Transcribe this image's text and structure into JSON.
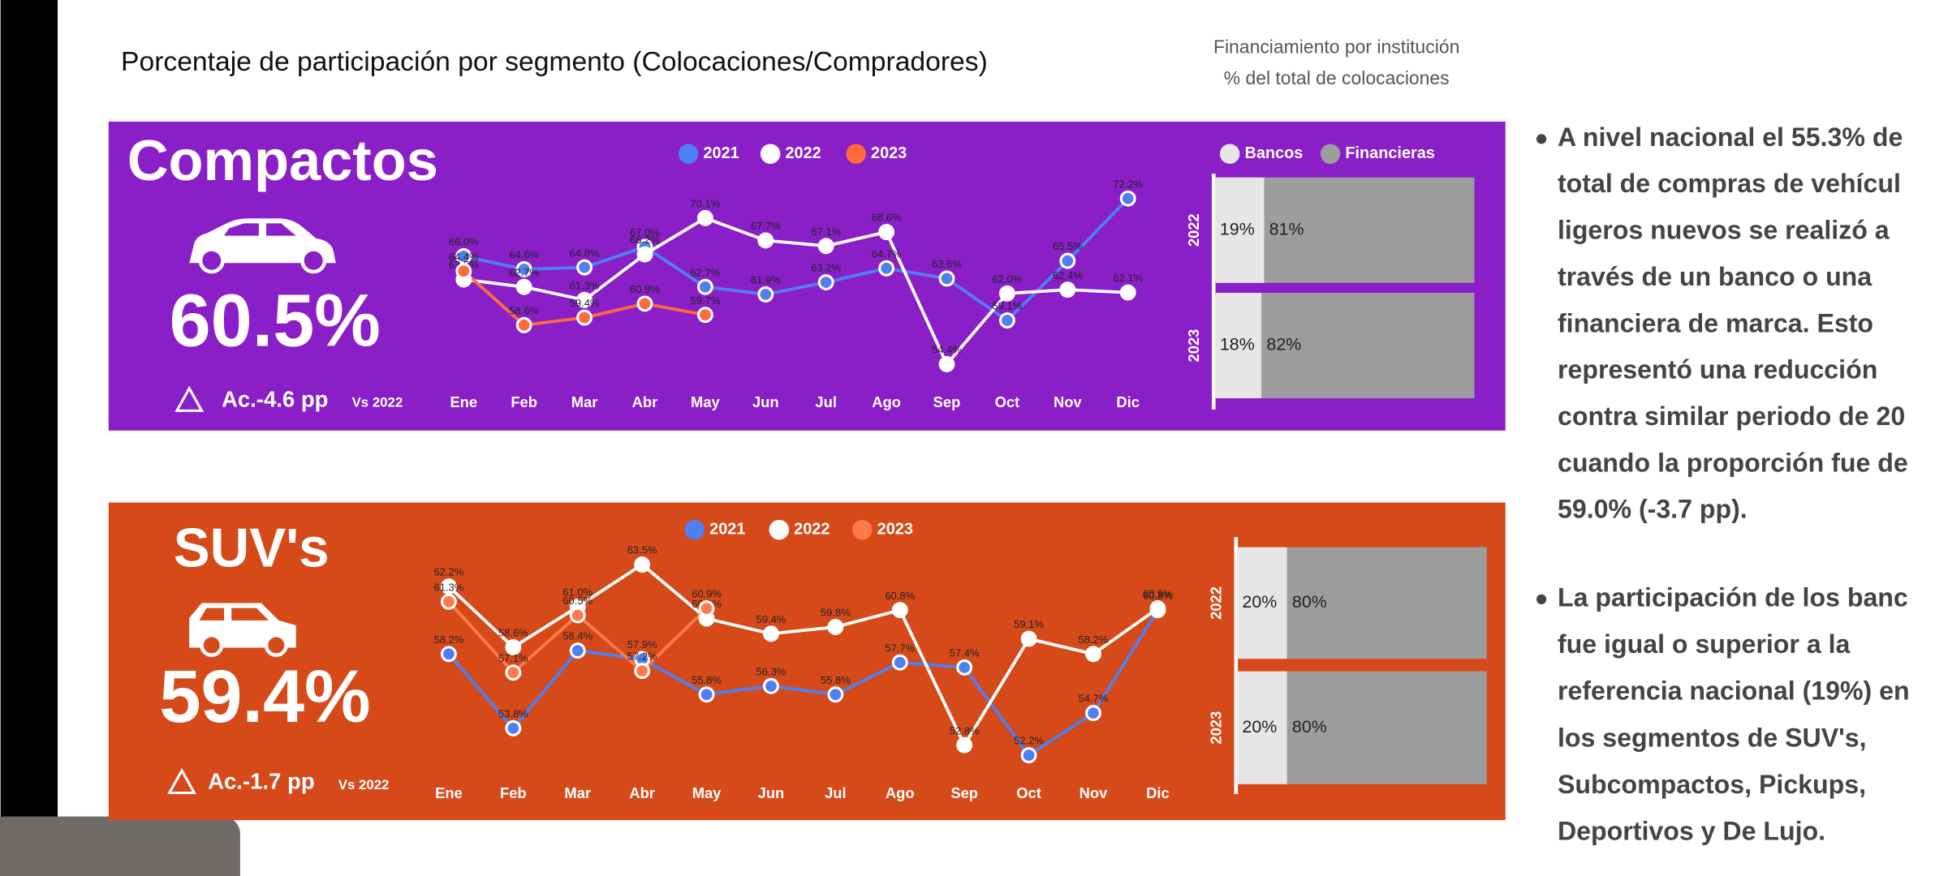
{
  "title": "Porcentaje de participación por segmento (Colocaciones/Compradores)",
  "subtitle_lines": [
    "Financiamiento por institución",
    "% del total de colocaciones"
  ],
  "panels": [
    {
      "name": "Compactos",
      "share": "60.5%",
      "delta": "Ac.-4.6 pp",
      "vs": "Vs 2022"
    },
    {
      "name": "SUV's",
      "share": "59.4%",
      "delta": "Ac.-1.7 pp",
      "vs": "Vs 2022"
    }
  ],
  "bullets": [
    [
      "A nivel nacional el 55.3% de",
      "total de compras de vehícul",
      "ligeros nuevos se realizó a",
      "través de un banco o una",
      "financiera de marca. Esto",
      "representó una reducción",
      "contra similar periodo de 20",
      "cuando la proporción fue de",
      "59.0% (-3.7 pp)."
    ],
    [
      "La participación de los banc",
      "fue igual o superior a la",
      "referencia nacional (19%) en",
      "los segmentos de SUV's,",
      "Subcompactos, Pickups,",
      "Deportivos y De Lujo."
    ]
  ],
  "chart_data": [
    {
      "type": "line",
      "legend": "top",
      "categories": [
        "Ene",
        "Feb",
        "Mar",
        "Abr",
        "May",
        "Jun",
        "Jul",
        "Ago",
        "Sep",
        "Oct",
        "Nov",
        "Dic"
      ],
      "ylim": [
        52,
        74
      ],
      "series": [
        {
          "name": "2021",
          "color": "#4f7ff0",
          "values": [
            66,
            64.6,
            64.8,
            67,
            62.7,
            61.9,
            63.2,
            64.7,
            63.6,
            59.1,
            65.5,
            72.2
          ],
          "value_labels": [
            "66.0%",
            "64.6%",
            "64.8%",
            "67.0%",
            "62.7%",
            "61.9%",
            "63.2%",
            "64.7%",
            "63.6%",
            "59.1%",
            "65.5%",
            "72.2%"
          ]
        },
        {
          "name": "2022",
          "color": "#ffffff",
          "values": [
            63.5,
            62.7,
            61.3,
            66.2,
            70.1,
            67.7,
            67.1,
            68.6,
            54.4,
            62,
            62.4,
            62.1
          ],
          "value_labels": [
            "63.5%",
            "62.7%",
            "61.3%",
            "66.2%",
            "70.1%",
            "67.7%",
            "67.1%",
            "68.6%",
            "54.4%",
            "62.0%",
            "62.4%",
            "62.1%"
          ]
        },
        {
          "name": "2023",
          "color": "#ff6a3d",
          "values": [
            64.4,
            58.6,
            59.4,
            60.9,
            59.7,
            null,
            null,
            null,
            null,
            null,
            null,
            null
          ],
          "value_labels": [
            "64.4%",
            "58.6%",
            "59.4%",
            "60.9%",
            "59.7%",
            null,
            null,
            null,
            null,
            null,
            null,
            null
          ]
        }
      ]
    },
    {
      "type": "stacked_hbar",
      "legend": "top",
      "categories": [
        "2022",
        "2023"
      ],
      "xlim": [
        0,
        100
      ],
      "series": [
        {
          "name": "Bancos",
          "color": "#e6e6e6",
          "values": [
            19,
            18
          ],
          "value_labels": [
            "19%",
            "18%"
          ]
        },
        {
          "name": "Financieras",
          "color": "#9d9d9d",
          "values": [
            81,
            82
          ],
          "value_labels": [
            "81%",
            "82%"
          ]
        }
      ]
    },
    {
      "type": "line",
      "legend": "top",
      "categories": [
        "Ene",
        "Feb",
        "Mar",
        "Abr",
        "May",
        "Jun",
        "Jul",
        "Ago",
        "Sep",
        "Oct",
        "Nov",
        "Dic"
      ],
      "ylim": [
        51,
        65
      ],
      "series": [
        {
          "name": "2021",
          "color": "#4f7ff0",
          "values": [
            58.2,
            53.8,
            58.4,
            57.9,
            55.8,
            56.3,
            55.8,
            57.7,
            57.4,
            52.2,
            54.7,
            60.8
          ],
          "value_labels": [
            "58.2%",
            "53.8%",
            "58.4%",
            "57.9%",
            "55.8%",
            "56.3%",
            "55.8%",
            "57.7%",
            "57.4%",
            "52.2%",
            "54.7%",
            "60.8%"
          ]
        },
        {
          "name": "2022",
          "color": "#ffffff",
          "values": [
            62.2,
            58.6,
            61,
            63.5,
            60.3,
            59.4,
            59.8,
            60.8,
            52.8,
            59.1,
            58.2,
            60.9
          ],
          "value_labels": [
            "62.2%",
            "58.6%",
            "61.0%",
            "63.5%",
            "60.3%",
            "59.4%",
            "59.8%",
            "60.8%",
            "52.8%",
            "59.1%",
            "58.2%",
            "60.9%"
          ]
        },
        {
          "name": "2023",
          "color": "#ff7a4a",
          "values": [
            61.3,
            57.1,
            60.5,
            57.2,
            60.9,
            null,
            null,
            null,
            null,
            null,
            null,
            null
          ],
          "value_labels": [
            "61.3%",
            "57.1%",
            "60.5%",
            "57.2%",
            "60.9%",
            null,
            null,
            null,
            null,
            null,
            null,
            null
          ]
        }
      ]
    },
    {
      "type": "stacked_hbar",
      "categories": [
        "2022",
        "2023"
      ],
      "xlim": [
        0,
        100
      ],
      "series": [
        {
          "name": "Bancos",
          "color": "#e6e6e6",
          "values": [
            20,
            20
          ],
          "value_labels": [
            "20%",
            "20%"
          ]
        },
        {
          "name": "Financieras",
          "color": "#9d9d9d",
          "values": [
            80,
            80
          ],
          "value_labels": [
            "80%",
            "80%"
          ]
        }
      ]
    }
  ]
}
